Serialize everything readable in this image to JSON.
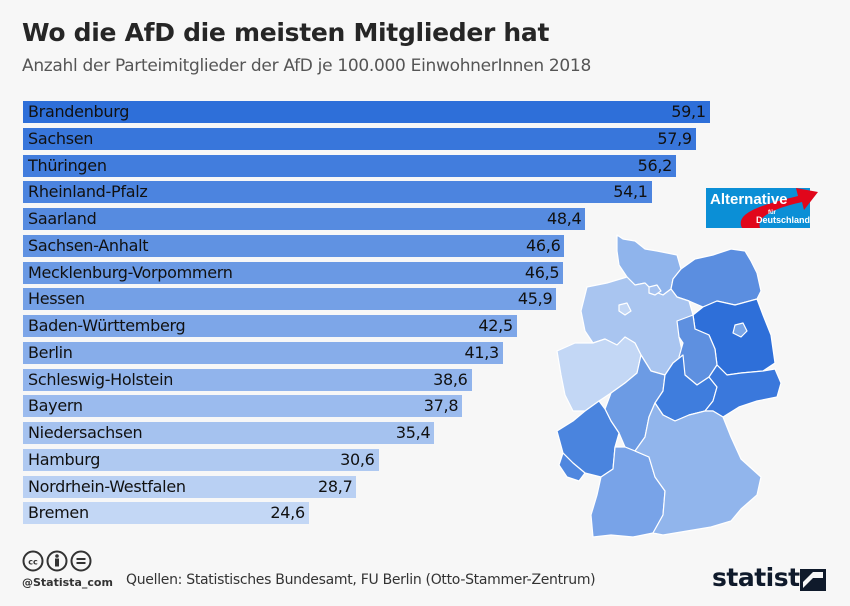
{
  "header": {
    "title": "Wo die AfD die meisten Mitglieder hat",
    "subtitle": "Anzahl der Parteimitglieder der AfD je 100.000 EinwohnerInnen 2018"
  },
  "logo": {
    "line1": "Alternative",
    "line2": "für",
    "line3": "Deutschland",
    "colors": {
      "blue": "#0b8fd6",
      "red": "#e1061b"
    }
  },
  "footer": {
    "handle": "@Statista_com",
    "source": "Quellen: Statistisches Bundesamt, FU Berlin (Otto-Stammer-Zentrum)",
    "brand": "statista",
    "license_icons": [
      "cc-icon",
      "by-icon",
      "nd-icon"
    ]
  },
  "colors": {
    "bar_dark": "#2e6fd9",
    "bar_light": "#c3d7f5",
    "map_border": "#ffffff"
  },
  "chart_data": {
    "type": "bar",
    "orientation": "horizontal",
    "title": "Wo die AfD die meisten Mitglieder hat",
    "subtitle": "Anzahl der Parteimitglieder der AfD je 100.000 EinwohnerInnen 2018",
    "xlabel": "",
    "ylabel": "",
    "xlim": [
      0,
      60
    ],
    "grid": false,
    "categories": [
      "Brandenburg",
      "Sachsen",
      "Thüringen",
      "Rheinland-Pfalz",
      "Saarland",
      "Sachsen-Anhalt",
      "Mecklenburg-Vorpommern",
      "Hessen",
      "Baden-Württemberg",
      "Berlin",
      "Schleswig-Holstein",
      "Bayern",
      "Niedersachsen",
      "Hamburg",
      "Nordrhein-Westfalen",
      "Bremen"
    ],
    "values": [
      59.1,
      57.9,
      56.2,
      54.1,
      48.4,
      46.6,
      46.5,
      45.9,
      42.5,
      41.3,
      38.6,
      37.8,
      35.4,
      30.6,
      28.7,
      24.6
    ],
    "value_labels": [
      "59,1",
      "57,9",
      "56,2",
      "54,1",
      "48,4",
      "46,6",
      "46,5",
      "45,9",
      "42,5",
      "41,3",
      "38,6",
      "37,8",
      "35,4",
      "30,6",
      "28,7",
      "24,6"
    ]
  }
}
